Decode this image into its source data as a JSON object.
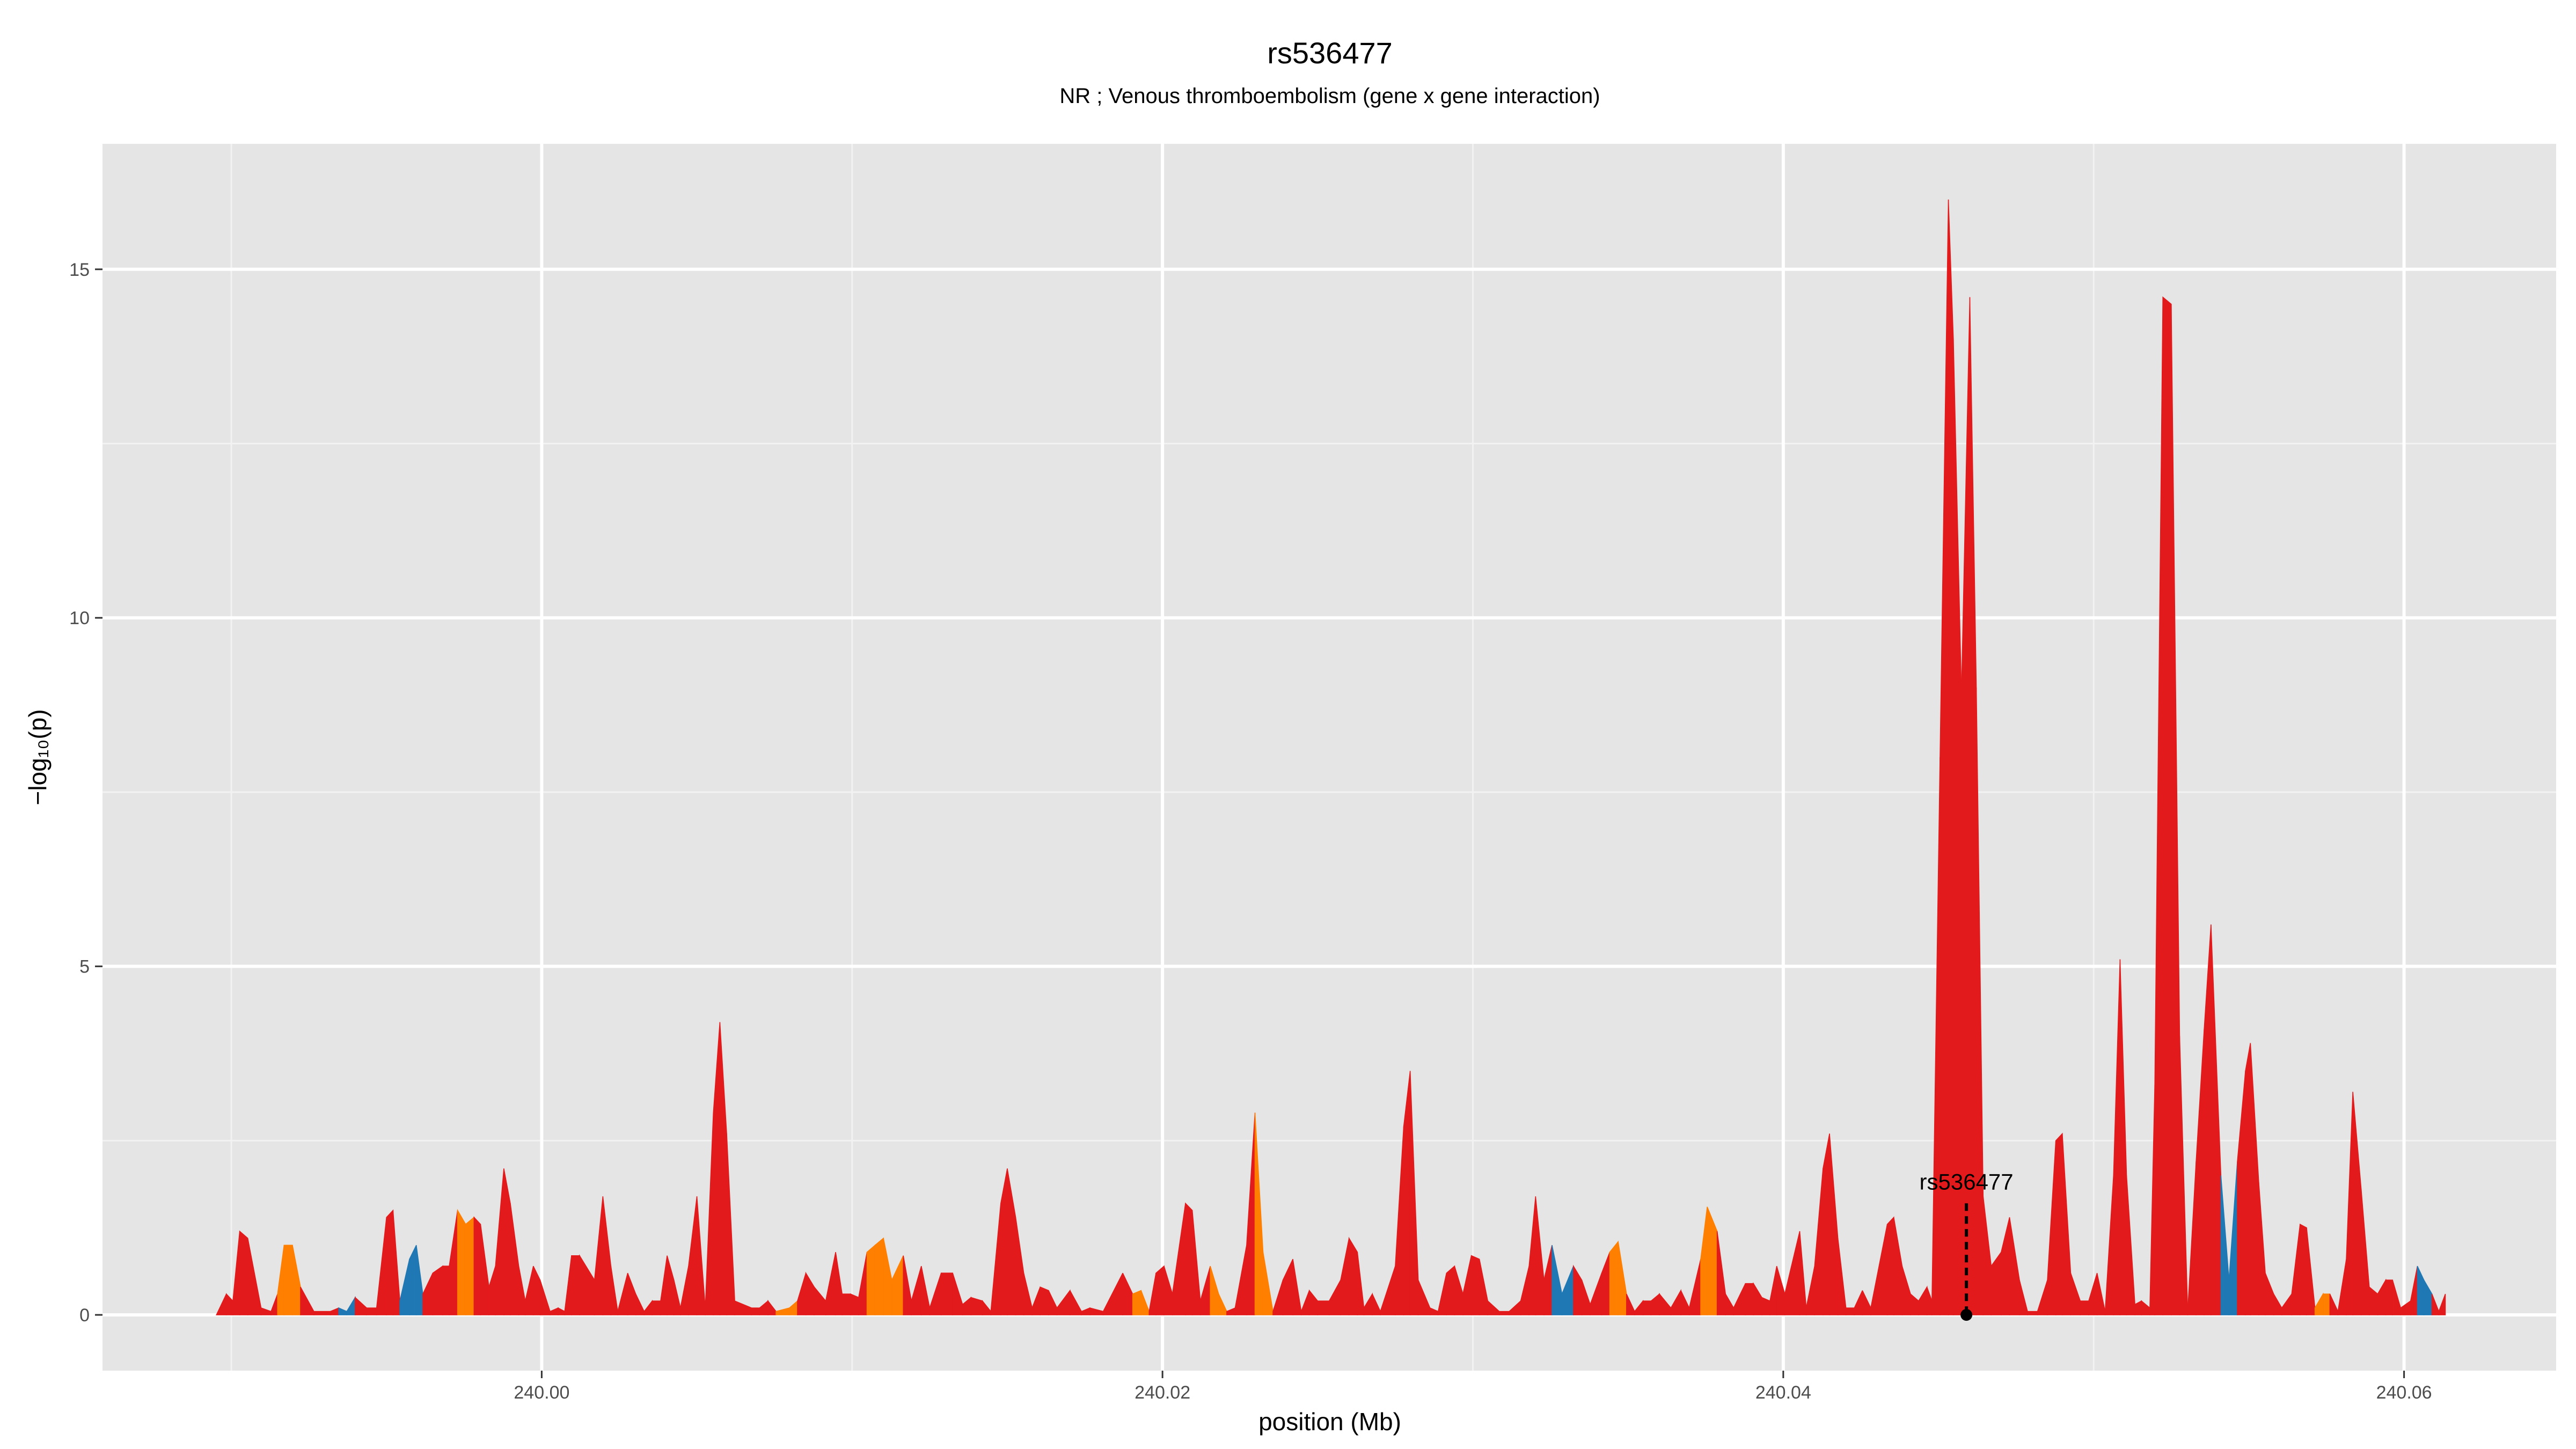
{
  "chart_data": {
    "type": "area",
    "title": "rs536477",
    "subtitle": "NR ; Venous thromboembolism (gene x gene interaction)",
    "xlabel": "position (Mb)",
    "ylabel": "−log₁₀(p)",
    "xlim": [
      239.98585,
      240.0649
    ],
    "ylim": [
      -0.8,
      16.8
    ],
    "grid": true,
    "x_ticks": [
      240.0,
      240.02,
      240.04,
      240.06
    ],
    "x_tick_labels": [
      "240.00",
      "240.02",
      "240.04",
      "240.06"
    ],
    "x_minor_ticks": [
      239.99,
      240.01,
      240.03,
      240.05
    ],
    "y_ticks": [
      0,
      5,
      10,
      15
    ],
    "y_tick_labels": [
      "0",
      "5",
      "10",
      "15"
    ],
    "y_minor_ticks": [
      2.5,
      7.5,
      12.5
    ],
    "colors": {
      "r": "#e31a1c",
      "o": "#ff7f00",
      "b": "#1f78b4"
    },
    "background": "#e5e5e5",
    "highlight": {
      "label": "rs536477",
      "x": 240.0459,
      "y": 0
    },
    "x": [
      239.98952,
      239.98984,
      239.99005,
      239.99027,
      239.99053,
      239.99096,
      239.99128,
      239.99149,
      239.9917,
      239.99197,
      239.99223,
      239.99266,
      239.99319,
      239.99346,
      239.99372,
      239.99399,
      239.99436,
      239.99468,
      239.995,
      239.99521,
      239.99543,
      239.99574,
      239.99596,
      239.99617,
      239.99649,
      239.99681,
      239.99702,
      239.99729,
      239.99755,
      239.99782,
      239.99803,
      239.9983,
      239.99851,
      239.99878,
      239.99899,
      239.99926,
      239.99947,
      239.99973,
      239.99995,
      240.00027,
      240.00053,
      240.00074,
      240.00096,
      240.00122,
      240.0017,
      240.00197,
      240.00223,
      240.00245,
      240.00277,
      240.00303,
      240.0033,
      240.00356,
      240.00383,
      240.00404,
      240.00426,
      240.00447,
      240.00473,
      240.005,
      240.00527,
      240.00553,
      240.00574,
      240.00596,
      240.00622,
      240.00676,
      240.00702,
      240.00729,
      240.00755,
      240.00798,
      240.00824,
      240.00851,
      240.00878,
      240.00915,
      240.00947,
      240.00968,
      240.00995,
      240.01021,
      240.01048,
      240.01074,
      240.01101,
      240.01128,
      240.01165,
      240.01191,
      240.01223,
      240.0125,
      240.01287,
      240.01324,
      240.01356,
      240.01383,
      240.0142,
      240.01447,
      240.01479,
      240.015,
      240.01527,
      240.01553,
      240.0158,
      240.01606,
      240.01633,
      240.0166,
      240.01702,
      240.01739,
      240.01766,
      240.01809,
      240.01872,
      240.01904,
      240.01931,
      240.01957,
      240.01979,
      240.02005,
      240.02032,
      240.02074,
      240.02096,
      240.02122,
      240.02154,
      240.02181,
      240.02207,
      240.02234,
      240.02271,
      240.02298,
      240.02324,
      240.02356,
      240.02388,
      240.0242,
      240.02447,
      240.02473,
      240.025,
      240.02537,
      240.02574,
      240.02601,
      240.02628,
      240.02649,
      240.02676,
      240.02702,
      240.0275,
      240.02777,
      240.02798,
      240.02824,
      240.02862,
      240.02888,
      240.02915,
      240.02941,
      240.02968,
      240.02995,
      240.03021,
      240.03048,
      240.03085,
      240.03117,
      240.03154,
      240.03181,
      240.03202,
      240.03229,
      240.03255,
      240.03287,
      240.03324,
      240.03351,
      240.03378,
      240.03415,
      240.03441,
      240.03468,
      240.03495,
      240.03521,
      240.03548,
      240.03574,
      240.03601,
      240.03638,
      240.0367,
      240.03697,
      240.03734,
      240.03755,
      240.03787,
      240.03814,
      240.0384,
      240.03878,
      240.03904,
      240.03931,
      240.03957,
      240.03979,
      240.04005,
      240.04053,
      240.04074,
      240.04101,
      240.04128,
      240.04149,
      240.04176,
      240.04202,
      240.04229,
      240.04255,
      240.04282,
      240.04335,
      240.04356,
      240.04383,
      240.0441,
      240.04436,
      240.04463,
      240.04479,
      240.04505,
      240.04532,
      240.04548,
      240.04574,
      240.04601,
      240.04622,
      240.04644,
      240.0467,
      240.04702,
      240.04729,
      240.04761,
      240.04787,
      240.04819,
      240.04851,
      240.04878,
      240.04899,
      240.04926,
      240.04957,
      240.04984,
      240.05011,
      240.05037,
      240.05064,
      240.05085,
      240.05106,
      240.05133,
      240.05154,
      240.05181,
      240.05197,
      240.05223,
      240.0525,
      240.05277,
      240.05303,
      240.0533,
      240.05356,
      240.05378,
      240.0541,
      240.05436,
      240.05463,
      240.05489,
      240.05505,
      240.05532,
      240.05553,
      240.0558,
      240.05606,
      240.05638,
      240.05665,
      240.05686,
      240.05713,
      240.05739,
      240.05761,
      240.05787,
      240.05814,
      240.05835,
      240.05862,
      240.05888,
      240.05915,
      240.05941,
      240.05963,
      240.05989,
      240.06021,
      240.06043,
      240.06064,
      240.0609,
      240.06112,
      240.06133
    ],
    "y": [
      0,
      0.3,
      0.2,
      1.2,
      1.1,
      0.1,
      0.05,
      0.3,
      1.0,
      1.0,
      0.4,
      0.05,
      0.05,
      0.1,
      0.05,
      0.25,
      0.1,
      0.1,
      1.4,
      1.5,
      0.2,
      0.8,
      1.0,
      0.3,
      0.6,
      0.7,
      0.7,
      1.5,
      1.3,
      1.4,
      1.3,
      0.4,
      0.7,
      2.1,
      1.6,
      0.7,
      0.2,
      0.7,
      0.5,
      0.05,
      0.1,
      0.05,
      0.85,
      0.85,
      0.5,
      1.7,
      0.7,
      0.05,
      0.6,
      0.3,
      0.05,
      0.2,
      0.2,
      0.85,
      0.5,
      0.1,
      0.7,
      1.7,
      0.1,
      2.9,
      4.2,
      2.6,
      0.2,
      0.1,
      0.1,
      0.2,
      0.05,
      0.1,
      0.2,
      0.6,
      0.4,
      0.2,
      0.9,
      0.3,
      0.3,
      0.25,
      0.9,
      1.0,
      1.1,
      0.5,
      0.85,
      0.2,
      0.7,
      0.1,
      0.6,
      0.6,
      0.15,
      0.25,
      0.2,
      0.05,
      1.6,
      2.1,
      1.4,
      0.6,
      0.1,
      0.4,
      0.35,
      0.1,
      0.35,
      0.05,
      0.1,
      0.05,
      0.6,
      0.3,
      0.35,
      0.05,
      0.6,
      0.7,
      0.3,
      1.6,
      1.5,
      0.2,
      0.7,
      0.3,
      0.05,
      0.1,
      1.0,
      2.9,
      0.9,
      0.05,
      0.5,
      0.8,
      0.05,
      0.35,
      0.2,
      0.2,
      0.5,
      1.1,
      0.9,
      0.1,
      0.3,
      0.05,
      0.7,
      2.7,
      3.5,
      0.5,
      0.1,
      0.05,
      0.6,
      0.7,
      0.3,
      0.85,
      0.8,
      0.2,
      0.05,
      0.05,
      0.2,
      0.7,
      1.7,
      0.5,
      1.0,
      0.3,
      0.7,
      0.5,
      0.15,
      0.6,
      0.9,
      1.05,
      0.3,
      0.05,
      0.2,
      0.2,
      0.3,
      0.1,
      0.35,
      0.1,
      0.8,
      1.55,
      1.2,
      0.3,
      0.1,
      0.45,
      0.45,
      0.25,
      0.2,
      0.7,
      0.3,
      1.2,
      0.1,
      0.7,
      2.1,
      2.6,
      1.1,
      0.1,
      0.1,
      0.35,
      0.1,
      1.3,
      1.4,
      0.7,
      0.3,
      0.2,
      0.4,
      0.2,
      8.0,
      16.0,
      14.0,
      8.9,
      14.6,
      9.0,
      1.7,
      0.7,
      0.9,
      1.4,
      0.5,
      0.05,
      0.05,
      0.5,
      2.5,
      2.6,
      0.6,
      0.2,
      0.2,
      0.6,
      0.05,
      2.0,
      5.1,
      2.0,
      0.15,
      0.2,
      0.1,
      3.3,
      14.6,
      14.5,
      4.0,
      0.05,
      2.2,
      4.1,
      5.6,
      2.0,
      0.5,
      2.2,
      3.5,
      3.9,
      1.9,
      0.6,
      0.3,
      0.1,
      0.3,
      1.3,
      1.25,
      0.1,
      0.3,
      0.3,
      0.05,
      0.8,
      3.2,
      1.8,
      0.4,
      0.3,
      0.5,
      0.5,
      0.1,
      0.2,
      0.7,
      0.5,
      0.3,
      0.05,
      0.3
    ],
    "color": "rrrrrrrroorrrrbrrrrrrbbrrrrrorrrrrrrrrrrrrrrrrrrrrrrrrrrrrrrrrrrrrrorrrrrrrrrooorrrrrrrrrrrrrrrrrrrrrrrrorrrrrrrrorrrrorrrrrrrrrrrrrrrrrrrrrrrrrrrrrrrrbrrrrrorrrrrrrrrorrrrrrrrrrrrrrrrrrrrrrrrrrrrrrrrrrrrrrrrrrrrrrrrrrrrrrrrrrrrrrbrrrrrrrrrrrorrrrrrrrrrrrbrrrrrrrrr"
  }
}
